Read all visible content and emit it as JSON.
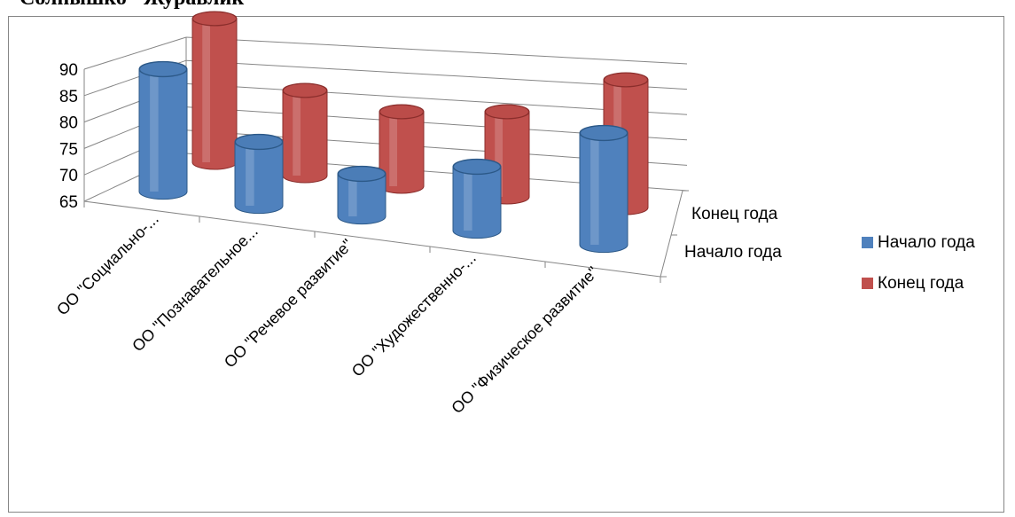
{
  "caption_text": "Cолнышко \"Журавлик\"",
  "chart_data": {
    "type": "bar",
    "style": "3d-cylinder",
    "categories": [
      "ОО \"Социально-...",
      "ОО \"Познавательное...",
      "ОО \"Речевое развитие\"",
      "ОО \"Художественно-...",
      "ОО \"Физическое развитие\""
    ],
    "series": [
      {
        "name": "Начало года",
        "color": "#4F81BD",
        "values": [
          88,
          77,
          73,
          77,
          86
        ]
      },
      {
        "name": "Конец года",
        "color": "#C0504D",
        "values": [
          92,
          81,
          79,
          81,
          89
        ]
      }
    ],
    "depth_labels": [
      "Конец года",
      "Начало года"
    ],
    "yticks": [
      65,
      70,
      75,
      80,
      85,
      90
    ],
    "ylim": [
      65,
      90
    ],
    "grid": true,
    "legend": "right"
  }
}
